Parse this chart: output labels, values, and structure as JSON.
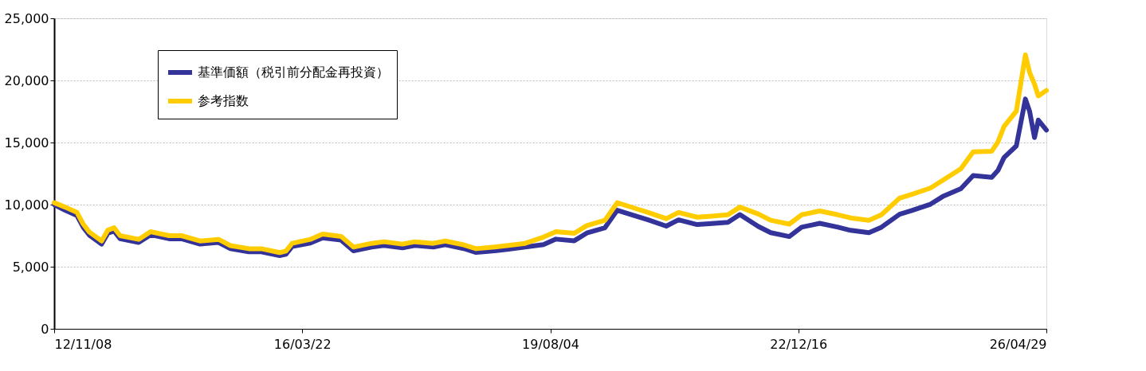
{
  "chart_data": {
    "type": "line",
    "x": [
      "2012-11-08",
      "2013-01",
      "2013-03",
      "2013-04",
      "2013-05",
      "2013-07",
      "2013-08",
      "2013-09",
      "2013-10",
      "2014-01",
      "2014-03",
      "2014-06",
      "2014-08",
      "2014-11",
      "2015-02",
      "2015-04",
      "2015-07",
      "2015-09",
      "2015-12",
      "2016-01",
      "2016-02",
      "2016-05",
      "2016-07",
      "2016-10",
      "2016-12",
      "2017-03",
      "2017-05",
      "2017-08",
      "2017-10",
      "2018-01",
      "2018-03",
      "2018-06",
      "2018-08",
      "2018-11",
      "2019-01",
      "2019-04",
      "2019-07",
      "2019-09",
      "2019-12",
      "2020-02",
      "2020-05",
      "2020-07",
      "2020-10",
      "2020-12",
      "2021-03",
      "2021-05",
      "2021-08",
      "2021-10",
      "2022-01",
      "2022-03",
      "2022-06",
      "2022-08",
      "2022-11",
      "2023-01",
      "2023-04",
      "2023-07",
      "2023-09",
      "2023-12",
      "2024-02",
      "2024-05",
      "2024-07",
      "2024-10",
      "2024-12",
      "2025-03",
      "2025-05",
      "2025-08",
      "2025-09",
      "2025-10",
      "2025-12",
      "2026-01-15",
      "2026-02-05",
      "2026-03-01",
      "2026-03-20",
      "2026-04-29"
    ],
    "series": [
      {
        "name": "基準価額（税引前分配金再投資）",
        "color": "#333399",
        "values": [
          10000,
          9550,
          9120,
          8180,
          7550,
          6820,
          7690,
          7880,
          7250,
          6950,
          7570,
          7250,
          7250,
          6820,
          6950,
          6450,
          6200,
          6200,
          5890,
          6010,
          6630,
          6900,
          7330,
          7140,
          6280,
          6580,
          6710,
          6520,
          6710,
          6580,
          6770,
          6460,
          6150,
          6280,
          6400,
          6580,
          6780,
          7220,
          7090,
          7710,
          8140,
          9550,
          9080,
          8770,
          8270,
          8770,
          8390,
          8460,
          8580,
          9200,
          8240,
          7740,
          7430,
          8180,
          8490,
          8180,
          7930,
          7740,
          8180,
          9220,
          9530,
          10030,
          10650,
          11280,
          12340,
          12200,
          12750,
          13790,
          14730,
          18500,
          17500,
          15400,
          16800,
          16000
        ]
      },
      {
        "name": "参考指数",
        "color": "#ffcc00",
        "values": [
          10150,
          9800,
          9370,
          8430,
          7800,
          7070,
          7940,
          8130,
          7500,
          7200,
          7820,
          7500,
          7500,
          7070,
          7200,
          6700,
          6450,
          6450,
          6140,
          6260,
          6880,
          7200,
          7630,
          7440,
          6580,
          6880,
          7010,
          6820,
          7010,
          6880,
          7070,
          6760,
          6450,
          6580,
          6700,
          6880,
          7380,
          7820,
          7690,
          8310,
          8740,
          10150,
          9680,
          9370,
          8870,
          9370,
          8990,
          9060,
          9180,
          9800,
          9240,
          8740,
          8430,
          9180,
          9490,
          9180,
          8930,
          8740,
          9180,
          10520,
          10830,
          11330,
          11950,
          12880,
          14240,
          14300,
          15050,
          16290,
          17530,
          22060,
          20630,
          19700,
          18750,
          19190
        ]
      }
    ],
    "xlim": [
      "2012-11-08",
      "2026-04-29"
    ],
    "xticks": [
      {
        "value": "2012-11-08",
        "label": "12/11/08"
      },
      {
        "value": "2016-03-22",
        "label": "16/03/22"
      },
      {
        "value": "2019-08-04",
        "label": "19/08/04"
      },
      {
        "value": "2022-12-16",
        "label": "22/12/16"
      },
      {
        "value": "2026-04-29",
        "label": "26/04/29"
      }
    ],
    "ylim": [
      0,
      25000
    ],
    "yticks": [
      {
        "value": 0,
        "label": "0"
      },
      {
        "value": 5000,
        "label": "5,000"
      },
      {
        "value": 10000,
        "label": "10,000"
      },
      {
        "value": 15000,
        "label": "15,000"
      },
      {
        "value": 20000,
        "label": "20,000"
      },
      {
        "value": 25000,
        "label": "25,000"
      }
    ],
    "grid": "y",
    "legend": "top left",
    "marker": "none",
    "line_style": "solid"
  }
}
